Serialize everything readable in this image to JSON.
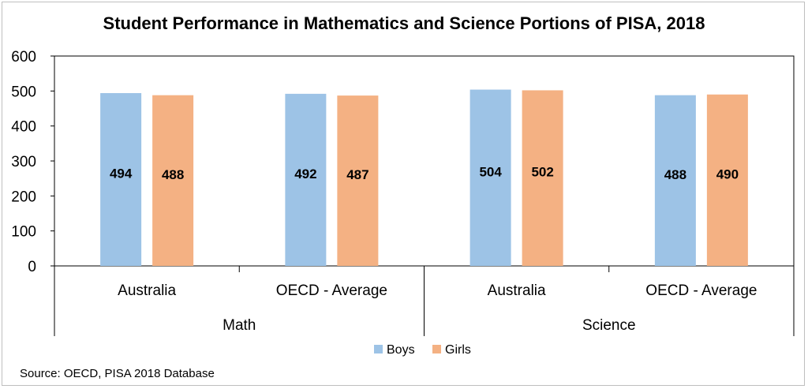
{
  "chart_data": {
    "type": "bar",
    "title": "Student Performance in Mathematics and Science Portions of PISA, 2018",
    "groups": [
      {
        "label": "Math",
        "categories": [
          "Australia",
          "OECD - Average"
        ]
      },
      {
        "label": "Science",
        "categories": [
          "Australia",
          "OECD - Average"
        ]
      }
    ],
    "categories": [
      "Australia",
      "OECD - Average",
      "Australia",
      "OECD - Average"
    ],
    "series": [
      {
        "name": "Boys",
        "color": "#9dc3e6",
        "values": [
          494,
          492,
          504,
          488
        ]
      },
      {
        "name": "Girls",
        "color": "#f4b183",
        "values": [
          488,
          487,
          502,
          490
        ]
      }
    ],
    "ylim": [
      0,
      600
    ],
    "yticks": [
      "0",
      "100",
      "200",
      "300",
      "400",
      "500",
      "600"
    ],
    "xlabel": "",
    "ylabel": "",
    "grid": false,
    "legend_position": "bottom",
    "source": "Source: OECD, PISA 2018 Database"
  }
}
